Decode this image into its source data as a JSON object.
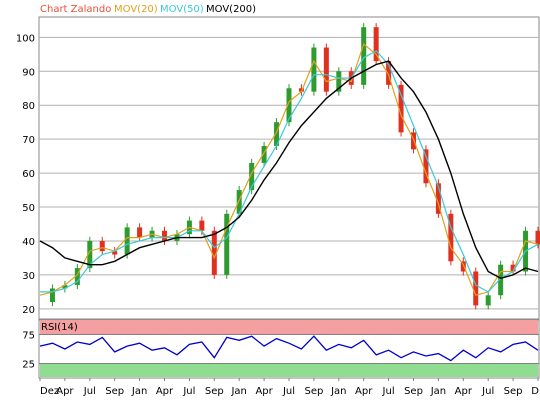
{
  "legend": {
    "chart": {
      "text": "Chart Zalando",
      "color": "#e8503a"
    },
    "mov20": {
      "text": "MOV(20)",
      "color": "#e0a020"
    },
    "mov50": {
      "text": "MOV(50)",
      "color": "#3cc8dc"
    },
    "mov200": {
      "text": "MOV(200)",
      "color": "#000000"
    }
  },
  "rsi": {
    "label": "RSI(14)",
    "overbought": 75,
    "oversold": 25,
    "colors": {
      "upper": "#f4a0a0",
      "lower": "#90dc90",
      "line": "#0000cc"
    }
  },
  "chart_data": [
    {
      "type": "line",
      "title": "Chart Zalando",
      "ylim": [
        17,
        106
      ],
      "yticks": [
        20,
        30,
        40,
        50,
        60,
        70,
        80,
        90,
        100
      ],
      "xticks": [
        "Dez",
        "Apr",
        "Jul",
        "Sep",
        "Jan",
        "Apr",
        "Jul",
        "Sep",
        "Jan",
        "Apr",
        "Jul",
        "Sep",
        "Jan",
        "Apr",
        "Jul",
        "Sep",
        "Jan",
        "Apr",
        "Jul",
        "Sep",
        "D"
      ],
      "x": [
        0,
        5,
        10,
        15,
        20,
        25,
        30,
        35,
        40,
        45,
        50,
        55,
        60,
        65,
        70,
        75,
        80,
        85,
        90,
        95,
        100,
        105,
        110,
        115,
        120,
        125,
        130,
        135,
        140,
        145,
        150,
        155,
        160,
        165,
        170,
        175,
        180,
        185,
        190,
        195,
        200
      ],
      "colors": {
        "up": "#2e9b2e",
        "down": "#e03020"
      },
      "series": [
        {
          "name": "Chart Zalando",
          "values": [
            22,
            26,
            27,
            32,
            40,
            37,
            36,
            44,
            41,
            43,
            40,
            42,
            46,
            43,
            30,
            48,
            55,
            63,
            68,
            75,
            85,
            84,
            97,
            84,
            90,
            86,
            103,
            93,
            86,
            72,
            67,
            57,
            48,
            34,
            31,
            21,
            24,
            33,
            31,
            43,
            39
          ]
        },
        {
          "name": "MOV(20)",
          "values": [
            24,
            25,
            27,
            30,
            37,
            38,
            37,
            41,
            41,
            42,
            41,
            42,
            44,
            43,
            35,
            44,
            52,
            60,
            66,
            72,
            81,
            84,
            93,
            87,
            88,
            87,
            98,
            95,
            89,
            77,
            70,
            60,
            51,
            38,
            33,
            24,
            25,
            31,
            31,
            40,
            39
          ]
        },
        {
          "name": "MOV(50)",
          "values": [
            25,
            25,
            26,
            28,
            33,
            36,
            37,
            39,
            40,
            41,
            41,
            41,
            43,
            43,
            38,
            41,
            48,
            56,
            62,
            68,
            76,
            82,
            89,
            89,
            88,
            88,
            94,
            96,
            92,
            83,
            74,
            65,
            56,
            44,
            36,
            27,
            25,
            29,
            31,
            37,
            39
          ]
        },
        {
          "name": "MOV(200)",
          "values": [
            40,
            38,
            35,
            34,
            33,
            33,
            34,
            36,
            38,
            39,
            40,
            41,
            41,
            41,
            42,
            44,
            47,
            52,
            58,
            63,
            69,
            74,
            78,
            82,
            85,
            88,
            90,
            92,
            93,
            88,
            84,
            78,
            70,
            60,
            48,
            38,
            31,
            29,
            30,
            32,
            31
          ]
        }
      ]
    },
    {
      "type": "line",
      "title": "RSI(14)",
      "ylim": [
        0,
        100
      ],
      "yticks": [
        25,
        75
      ],
      "series": [
        {
          "name": "RSI(14)",
          "values": [
            55,
            60,
            50,
            62,
            58,
            70,
            45,
            55,
            60,
            48,
            52,
            40,
            58,
            62,
            35,
            70,
            65,
            72,
            55,
            68,
            60,
            50,
            72,
            48,
            58,
            52,
            65,
            40,
            48,
            35,
            45,
            38,
            42,
            30,
            48,
            35,
            52,
            45,
            58,
            62,
            48
          ]
        }
      ]
    }
  ]
}
